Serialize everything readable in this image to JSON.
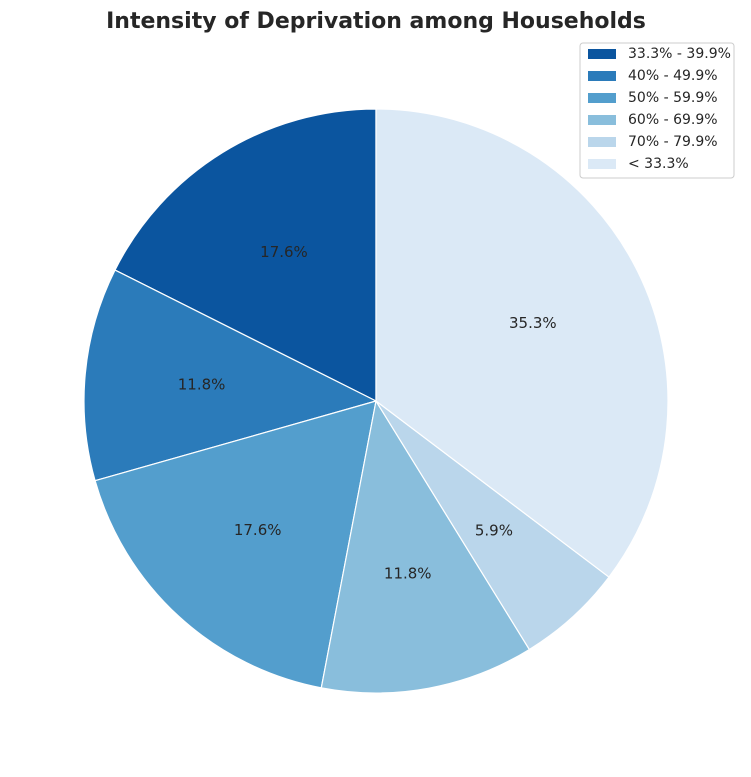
{
  "chart_data": {
    "type": "pie",
    "title": "Intensity of Deprivation among Households",
    "slices": [
      {
        "label": "33.3% - 39.9%",
        "value": 17.6,
        "text": "17.6%",
        "color": "#0b559f"
      },
      {
        "label": "40% - 49.9%",
        "value": 11.8,
        "text": "11.8%",
        "color": "#2b7bba"
      },
      {
        "label": "50% - 59.9%",
        "value": 17.6,
        "text": "17.6%",
        "color": "#539ecd"
      },
      {
        "label": "60% - 69.9%",
        "value": 11.8,
        "text": "11.8%",
        "color": "#89bedc"
      },
      {
        "label": "70% - 79.9%",
        "value": 5.9,
        "text": "5.9%",
        "color": "#bad6eb"
      },
      {
        "label": "< 33.3%",
        "value": 35.3,
        "text": "35.3%",
        "color": "#dbe9f6"
      }
    ],
    "start_angle": 90,
    "direction": "counterclockwise",
    "legend_position": "top-right"
  }
}
